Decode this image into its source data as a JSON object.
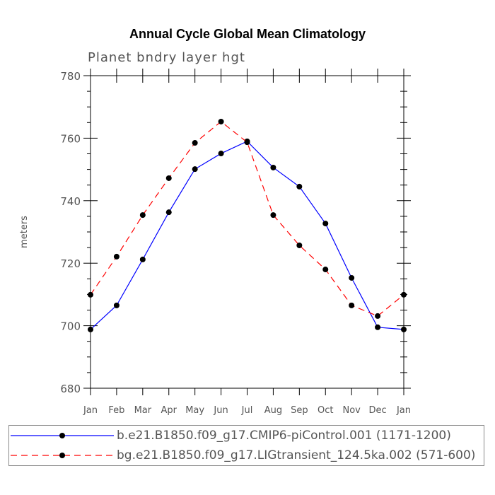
{
  "chart_data": {
    "type": "line",
    "title": "Annual Cycle Global Mean Climatology",
    "subtitle": "Planet bndry layer hgt",
    "xlabel": "",
    "ylabel": "meters",
    "categories": [
      "Jan",
      "Feb",
      "Mar",
      "Apr",
      "May",
      "Jun",
      "Jul",
      "Aug",
      "Sep",
      "Oct",
      "Nov",
      "Dec",
      "Jan"
    ],
    "ylim": [
      680,
      780
    ],
    "yticks": [
      680,
      700,
      720,
      740,
      760,
      780
    ],
    "grid": false,
    "legend_placement": "bottom",
    "series": [
      {
        "name": "b.e21.B1850.f09_g17.CMIP6-piControl.001 (1171-1200)",
        "color": "#0000ff",
        "dash": "solid",
        "values": [
          698.8,
          706.5,
          721.2,
          736.3,
          750.1,
          755.1,
          759.0,
          750.6,
          744.5,
          732.7,
          715.3,
          699.5,
          698.8
        ]
      },
      {
        "name": "bg.e21.B1850.f09_g17.LIGtransient_124.5ka.002 (571-600)",
        "color": "#ff0000",
        "dash": "dashed",
        "values": [
          709.9,
          722.1,
          735.4,
          747.2,
          758.5,
          765.3,
          758.7,
          735.4,
          725.7,
          718.0,
          706.5,
          703.1,
          709.9
        ]
      }
    ]
  }
}
